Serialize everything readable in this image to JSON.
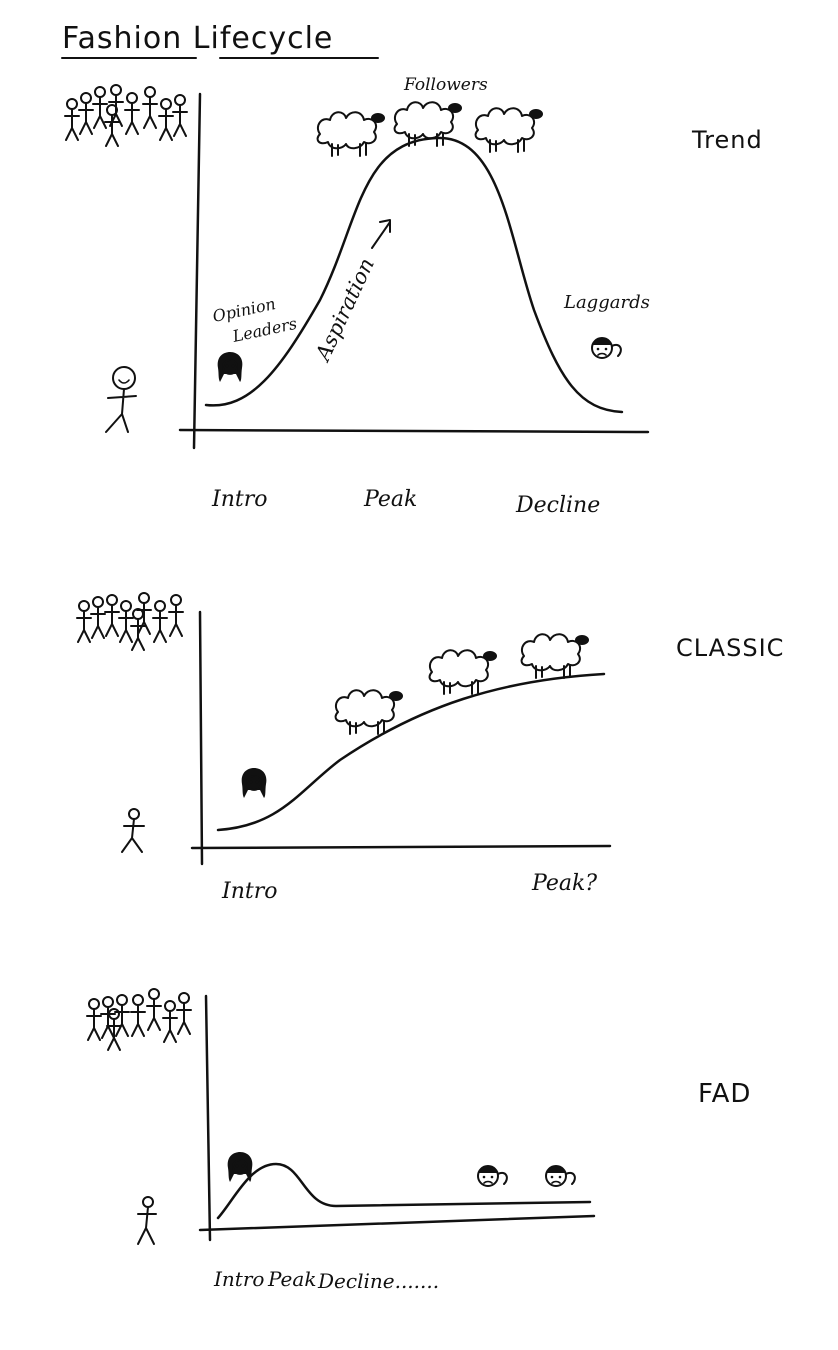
{
  "title": "Fashion Lifecycle",
  "panels": [
    {
      "id": "trend",
      "type_label": "Trend",
      "stage_labels": [
        "Intro",
        "Peak",
        "Decline"
      ],
      "annotations": {
        "followers": "Followers",
        "aspiration": "Aspiration",
        "opinion_leaders_line1": "Opinion",
        "opinion_leaders_line2": "Leaders",
        "laggards": "Laggards"
      }
    },
    {
      "id": "classic",
      "type_label": "CLASSIC",
      "stage_labels": [
        "Intro",
        "Peak?"
      ]
    },
    {
      "id": "fad",
      "type_label": "FAD",
      "stage_labels": [
        "Intro",
        "Peak",
        "Decline......."
      ]
    }
  ],
  "icons": [
    "crowd-icon",
    "person-icon",
    "sheep-icon",
    "opinion-leader-face-icon",
    "laggard-face-icon"
  ]
}
